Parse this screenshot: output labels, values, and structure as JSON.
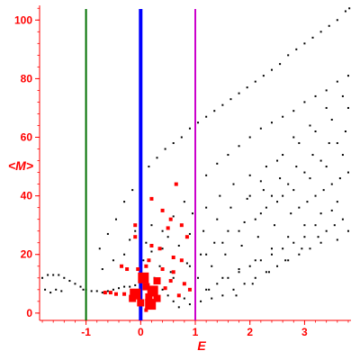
{
  "chart_data": {
    "type": "scatter",
    "xlabel": "E",
    "ylabel": "<M>",
    "xlim": [
      -1.85,
      3.85
    ],
    "ylim": [
      -2.5,
      105
    ],
    "x_ticks": [
      -1,
      0,
      1,
      2,
      3
    ],
    "y_ticks": [
      0,
      20,
      40,
      60,
      80,
      100
    ],
    "grid": false,
    "colors": {
      "axes": "#ff0000",
      "tick_labels": "#ff0000",
      "black_points": "#000000",
      "red_points": "#ff0000"
    },
    "vertical_lines": [
      {
        "x": -1,
        "color": "#007000"
      },
      {
        "x": 0,
        "color": "#0000ff",
        "emphasis": "thick"
      },
      {
        "x": 1,
        "color": "#cc00cc"
      }
    ],
    "black_series": {
      "upper_branch": [
        [
          -0.75,
          22
        ],
        [
          -0.6,
          27
        ],
        [
          -0.45,
          32
        ],
        [
          -0.3,
          38
        ],
        [
          -0.15,
          42
        ],
        [
          0.0,
          46
        ],
        [
          0.15,
          50
        ],
        [
          0.3,
          53
        ],
        [
          0.45,
          56
        ],
        [
          0.6,
          58
        ],
        [
          0.75,
          60
        ],
        [
          0.9,
          63
        ],
        [
          1.05,
          65
        ],
        [
          1.2,
          67
        ],
        [
          1.35,
          69
        ],
        [
          1.5,
          71
        ],
        [
          1.65,
          73
        ],
        [
          1.8,
          75
        ],
        [
          1.95,
          77
        ],
        [
          2.1,
          79
        ],
        [
          2.25,
          81
        ],
        [
          2.4,
          83
        ],
        [
          2.55,
          85
        ],
        [
          2.7,
          88
        ],
        [
          2.85,
          90
        ],
        [
          3.0,
          92
        ],
        [
          3.15,
          94
        ],
        [
          3.3,
          96
        ],
        [
          3.45,
          98
        ],
        [
          3.6,
          100
        ],
        [
          3.75,
          103
        ],
        [
          3.82,
          104
        ]
      ],
      "second_branch": [
        [
          0.0,
          14
        ],
        [
          0.2,
          21
        ],
        [
          0.4,
          28
        ],
        [
          0.6,
          33
        ],
        [
          0.8,
          38
        ],
        [
          1.0,
          43
        ],
        [
          1.2,
          47
        ],
        [
          1.4,
          51
        ],
        [
          1.6,
          54
        ],
        [
          1.8,
          57
        ],
        [
          2.0,
          60
        ],
        [
          2.2,
          63
        ],
        [
          2.4,
          65
        ],
        [
          2.6,
          67
        ],
        [
          2.8,
          69
        ],
        [
          3.0,
          72
        ],
        [
          3.2,
          74
        ],
        [
          3.4,
          76
        ],
        [
          3.6,
          79
        ],
        [
          3.8,
          81
        ]
      ],
      "left_tail": [
        [
          -1.8,
          12
        ],
        [
          -1.7,
          13
        ],
        [
          -1.6,
          13
        ],
        [
          -1.5,
          13
        ],
        [
          -1.4,
          12
        ],
        [
          -1.3,
          11
        ],
        [
          -1.2,
          10
        ],
        [
          -1.1,
          9
        ],
        [
          -1.05,
          8
        ],
        [
          -1.0,
          8
        ],
        [
          -0.9,
          7.5
        ],
        [
          -0.8,
          7.5
        ],
        [
          -0.7,
          7
        ],
        [
          -0.6,
          7.5
        ],
        [
          -0.5,
          8
        ],
        [
          -0.4,
          8.5
        ],
        [
          -0.3,
          9
        ],
        [
          -0.2,
          9
        ],
        [
          -0.1,
          9.5
        ],
        [
          -1.75,
          8
        ],
        [
          -1.65,
          7
        ],
        [
          -1.55,
          8
        ],
        [
          -1.45,
          7.5
        ]
      ],
      "cloud": [
        [
          -0.7,
          15
        ],
        [
          -0.5,
          18
        ],
        [
          -0.3,
          20
        ],
        [
          -0.2,
          25
        ],
        [
          -0.1,
          28
        ],
        [
          0.05,
          18
        ],
        [
          0.1,
          24
        ],
        [
          0.2,
          30
        ],
        [
          0.25,
          12
        ],
        [
          0.35,
          16
        ],
        [
          0.4,
          22
        ],
        [
          0.5,
          26
        ],
        [
          0.55,
          14
        ],
        [
          0.6,
          19
        ],
        [
          0.7,
          23
        ],
        [
          0.75,
          30
        ],
        [
          0.8,
          10
        ],
        [
          0.85,
          17
        ],
        [
          0.9,
          27
        ],
        [
          0.95,
          34
        ],
        [
          1.05,
          12
        ],
        [
          1.1,
          20
        ],
        [
          1.15,
          28
        ],
        [
          1.2,
          36
        ],
        [
          1.25,
          8
        ],
        [
          1.3,
          16
        ],
        [
          1.35,
          24
        ],
        [
          1.4,
          32
        ],
        [
          1.45,
          40
        ],
        [
          1.5,
          12
        ],
        [
          1.55,
          20
        ],
        [
          1.6,
          28
        ],
        [
          1.65,
          36
        ],
        [
          1.7,
          44
        ],
        [
          1.75,
          6
        ],
        [
          1.8,
          15
        ],
        [
          1.85,
          23
        ],
        [
          1.9,
          31
        ],
        [
          1.95,
          39
        ],
        [
          2.0,
          47
        ],
        [
          2.05,
          10
        ],
        [
          2.1,
          18
        ],
        [
          2.15,
          26
        ],
        [
          2.2,
          34
        ],
        [
          2.25,
          42
        ],
        [
          2.3,
          50
        ],
        [
          2.35,
          14
        ],
        [
          2.4,
          22
        ],
        [
          2.45,
          30
        ],
        [
          2.5,
          38
        ],
        [
          2.55,
          46
        ],
        [
          2.6,
          54
        ],
        [
          2.65,
          18
        ],
        [
          2.7,
          26
        ],
        [
          2.75,
          34
        ],
        [
          2.8,
          42
        ],
        [
          2.85,
          50
        ],
        [
          2.9,
          58
        ],
        [
          2.95,
          22
        ],
        [
          3.0,
          30
        ],
        [
          3.05,
          38
        ],
        [
          3.1,
          46
        ],
        [
          3.15,
          54
        ],
        [
          3.2,
          62
        ],
        [
          3.25,
          26
        ],
        [
          3.3,
          34
        ],
        [
          3.35,
          42
        ],
        [
          3.4,
          50
        ],
        [
          3.45,
          58
        ],
        [
          3.5,
          66
        ],
        [
          3.55,
          30
        ],
        [
          3.6,
          38
        ],
        [
          3.65,
          46
        ],
        [
          3.7,
          54
        ],
        [
          3.75,
          62
        ],
        [
          3.8,
          70
        ],
        [
          3.8,
          28
        ],
        [
          3.7,
          32
        ],
        [
          3.6,
          25
        ],
        [
          3.5,
          35
        ],
        [
          3.4,
          28
        ],
        [
          3.3,
          24
        ],
        [
          3.2,
          30
        ],
        [
          3.1,
          22
        ],
        [
          3.0,
          26
        ],
        [
          2.9,
          20
        ],
        [
          2.8,
          24
        ],
        [
          2.7,
          18
        ],
        [
          2.6,
          22
        ],
        [
          2.5,
          16
        ],
        [
          2.4,
          20
        ],
        [
          2.3,
          14
        ],
        [
          2.2,
          18
        ],
        [
          2.1,
          12
        ],
        [
          2.0,
          16
        ],
        [
          1.9,
          10
        ],
        [
          1.8,
          14
        ],
        [
          1.7,
          8
        ],
        [
          1.6,
          12
        ],
        [
          1.5,
          6
        ],
        [
          1.4,
          10
        ],
        [
          1.3,
          5
        ],
        [
          1.2,
          8
        ],
        [
          1.1,
          4
        ],
        [
          1.0,
          6
        ],
        [
          0.9,
          3
        ],
        [
          0.8,
          5
        ],
        [
          0.7,
          2
        ],
        [
          0.6,
          4
        ],
        [
          0.5,
          6
        ],
        [
          0.4,
          8
        ],
        [
          0.3,
          5
        ],
        [
          2.2,
          45
        ],
        [
          2.5,
          52
        ],
        [
          2.8,
          60
        ],
        [
          3.1,
          64
        ],
        [
          3.4,
          70
        ],
        [
          3.7,
          74
        ],
        [
          2.0,
          40
        ],
        [
          2.3,
          36
        ],
        [
          2.6,
          40
        ],
        [
          2.9,
          36
        ],
        [
          3.2,
          40
        ],
        [
          3.5,
          44
        ],
        [
          3.8,
          48
        ],
        [
          3.6,
          58
        ],
        [
          3.3,
          52
        ],
        [
          3.0,
          48
        ],
        [
          2.7,
          44
        ],
        [
          2.4,
          40
        ],
        [
          2.1,
          32
        ],
        [
          1.8,
          28
        ],
        [
          1.5,
          24
        ],
        [
          1.2,
          20
        ],
        [
          0.9,
          16
        ],
        [
          0.6,
          12
        ]
      ]
    },
    "red_series": [
      {
        "x": 0.18,
        "y": 3.0,
        "size": "large"
      },
      {
        "x": -0.1,
        "y": 6.5,
        "size": "large"
      },
      {
        "x": 0.22,
        "y": 7.5,
        "size": "large"
      },
      {
        "x": 0.05,
        "y": 12,
        "size": "large"
      },
      {
        "x": -0.15,
        "y": 5.0,
        "size": "medium"
      },
      {
        "x": 0.3,
        "y": 5.0,
        "size": "medium"
      },
      {
        "x": 0.1,
        "y": 9.0,
        "size": "medium"
      },
      {
        "x": 0.15,
        "y": 5.5,
        "size": "medium"
      },
      {
        "x": -0.3,
        "y": 6.5,
        "size": "small"
      },
      {
        "x": -0.45,
        "y": 6.5,
        "size": "small"
      },
      {
        "x": -0.55,
        "y": 7.0,
        "size": "small"
      },
      {
        "x": -0.65,
        "y": 7.0,
        "size": "small"
      },
      {
        "x": 0.45,
        "y": 8.5,
        "size": "small"
      },
      {
        "x": 0.55,
        "y": 11,
        "size": "small"
      },
      {
        "x": 0.6,
        "y": 14,
        "size": "small"
      },
      {
        "x": 0.4,
        "y": 15,
        "size": "small"
      },
      {
        "x": 0.2,
        "y": 23,
        "size": "small"
      },
      {
        "x": 0.35,
        "y": 22,
        "size": "small"
      },
      {
        "x": 0.6,
        "y": 19,
        "size": "small"
      },
      {
        "x": 0.75,
        "y": 18,
        "size": "small"
      },
      {
        "x": 0.8,
        "y": 10,
        "size": "small"
      },
      {
        "x": 0.7,
        "y": 6,
        "size": "small"
      },
      {
        "x": 0.9,
        "y": 8,
        "size": "small"
      },
      {
        "x": -0.1,
        "y": 30,
        "size": "small"
      },
      {
        "x": -0.1,
        "y": 26,
        "size": "small"
      },
      {
        "x": 0.2,
        "y": 39,
        "size": "small"
      },
      {
        "x": 0.4,
        "y": 35,
        "size": "small"
      },
      {
        "x": 0.55,
        "y": 32,
        "size": "small"
      },
      {
        "x": 0.5,
        "y": 29,
        "size": "small"
      },
      {
        "x": 0.1,
        "y": 16,
        "size": "small"
      },
      {
        "x": -0.35,
        "y": 16,
        "size": "small"
      },
      {
        "x": -0.25,
        "y": 15,
        "size": "small"
      },
      {
        "x": -0.05,
        "y": 15,
        "size": "small"
      },
      {
        "x": 0.15,
        "y": 18,
        "size": "small"
      },
      {
        "x": 0.65,
        "y": 44,
        "size": "small"
      },
      {
        "x": 0.75,
        "y": 30,
        "size": "small"
      },
      {
        "x": 0.85,
        "y": 26,
        "size": "small"
      },
      {
        "x": 0.1,
        "y": 1.0,
        "size": "small"
      },
      {
        "x": 0.3,
        "y": 11,
        "size": "medium"
      },
      {
        "x": 0.0,
        "y": 3.5,
        "size": "medium"
      }
    ]
  }
}
